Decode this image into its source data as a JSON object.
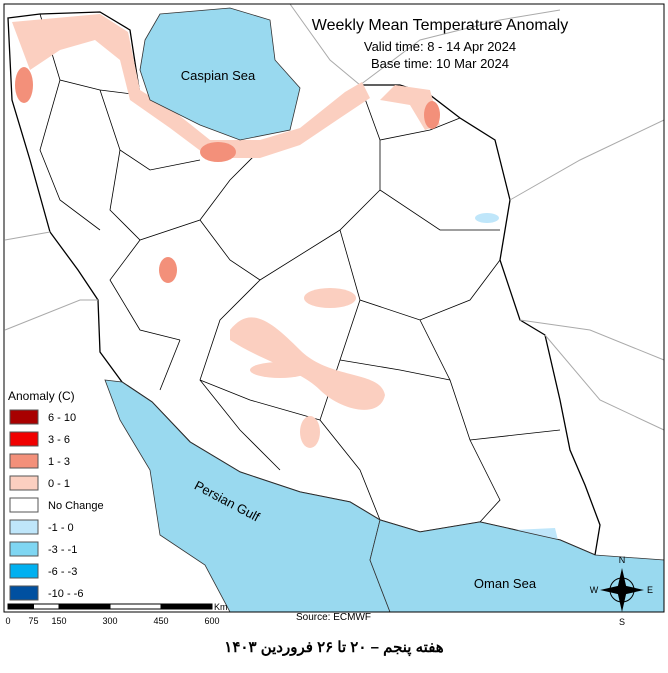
{
  "title": "Weekly Mean Temperature Anomaly",
  "valid_time": "Valid time: 8 - 14 Apr 2024",
  "base_time": "Base time: 10 Mar 2024",
  "water_labels": {
    "caspian": "Caspian Sea",
    "gulf": "Persian Gulf",
    "oman": "Oman Sea"
  },
  "legend": {
    "title": "Anomaly (C)",
    "items": [
      {
        "label": "6 - 10",
        "color": "#a80000"
      },
      {
        "label": "3 - 6",
        "color": "#f00000"
      },
      {
        "label": "1 - 3",
        "color": "#f3907a"
      },
      {
        "label": "0 - 1",
        "color": "#fbcfc0"
      },
      {
        "label": "No Change",
        "color": "#ffffff"
      },
      {
        "label": "-1 - 0",
        "color": "#bfe6fa"
      },
      {
        "label": "-3 - -1",
        "color": "#7fd6f2"
      },
      {
        "label": "-6 - -3",
        "color": "#00b0f0"
      },
      {
        "label": "-10 - -6",
        "color": "#0050a0"
      }
    ]
  },
  "scale": {
    "ticks": [
      "0",
      "75",
      "150",
      "300",
      "450",
      "600"
    ],
    "unit": "Km"
  },
  "compass": {
    "n": "N",
    "e": "E",
    "s": "S",
    "w": "W"
  },
  "source": "Source: ECMWF",
  "caption": "هفته پنجم – ۲۰ تا ۲۶ فروردین ۱۴۰۳"
}
